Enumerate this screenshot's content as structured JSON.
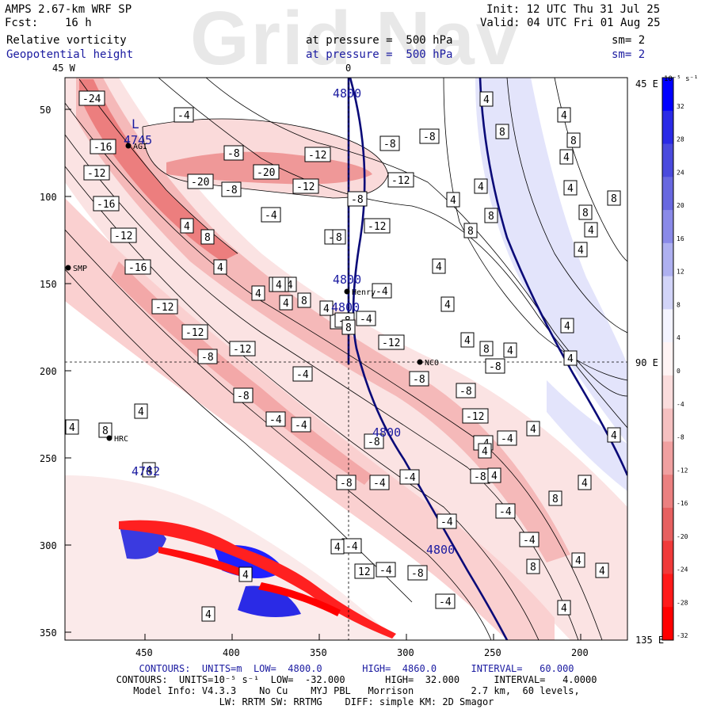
{
  "watermark": "Grid Nav",
  "header": {
    "model": "AMPS 2.67-km WRF SP",
    "fcst_label": "Fcst:",
    "fcst_value": "16 h",
    "init": "Init: 12 UTC Thu 31 Jul 25",
    "valid": "Valid: 04 UTC Fri 01 Aug 25",
    "field1": "Relative vorticity",
    "field2": "Geopotential height",
    "pressure1": "at pressure =  500 hPa",
    "pressure2": "at pressure =  500 hPa",
    "sm1": "sm= 2",
    "sm2": "sm= 2"
  },
  "map": {
    "lon_labels": {
      "top_left": "45 W",
      "top_center": "0",
      "right_top": "45 E",
      "right_mid": "90 E",
      "right_bottom": "135 E"
    },
    "y_ticks": [
      "50",
      "100",
      "150",
      "200",
      "250",
      "300",
      "350"
    ],
    "x_ticks": [
      "450",
      "400",
      "350",
      "300",
      "250",
      "200"
    ],
    "stations": [
      "AGI",
      "SMP",
      "Henry",
      "NCO",
      "HRC"
    ],
    "height_labels": [
      "4800",
      "4800",
      "4800",
      "4800",
      "4800",
      "4745",
      "4782"
    ],
    "low_marker": "L",
    "vort_labels_neg": [
      "-24",
      "-16",
      "-12",
      "-16",
      "-12",
      "-16",
      "-12",
      "-12",
      "-8",
      "-12",
      "-4",
      "-20",
      "-20",
      "-12",
      "-12",
      "-8",
      "-4",
      "-8",
      "-8",
      "-12",
      "-8",
      "-12",
      "-8",
      "-8",
      "-4",
      "-4",
      "-4",
      "-4",
      "-8",
      "-8",
      "-12",
      "-8",
      "-12",
      "-8",
      "-4",
      "-8",
      "-4",
      "-4",
      "-4",
      "-4",
      "-8",
      "-8",
      "-4",
      "-8",
      "-4",
      "-4",
      "-4",
      "-4",
      "-8",
      "-4",
      "-4",
      "-8",
      "-4"
    ],
    "vort_labels_pos": [
      "4",
      "4",
      "8",
      "4",
      "4",
      "8",
      "4",
      "4",
      "4",
      "4",
      "8",
      "4",
      "8",
      "8",
      "4",
      "4",
      "4",
      "8",
      "4",
      "4",
      "4",
      "8",
      "8",
      "4",
      "4",
      "8",
      "8",
      "4",
      "4",
      "4",
      "4",
      "4",
      "8",
      "4",
      "8",
      "4",
      "4",
      "8",
      "4",
      "4",
      "4",
      "4",
      "8",
      "4",
      "4",
      "4",
      "12",
      "4",
      "4"
    ]
  },
  "colorbar": {
    "unit": "10⁻⁵ s⁻¹",
    "labels": [
      "32",
      "28",
      "24",
      "20",
      "16",
      "12",
      "8",
      "4",
      "0",
      "-4",
      "-8",
      "-12",
      "-16",
      "-20",
      "-24",
      "-28",
      "-32"
    ],
    "colors": [
      "#0000ff",
      "#2a2ae6",
      "#4a4add",
      "#6868e0",
      "#8a8ae8",
      "#aeb0f0",
      "#d2d4f8",
      "#f4f4ff",
      "#fff4f4",
      "#fadcdc",
      "#f5c0c0",
      "#f0a0a0",
      "#eb8080",
      "#e66060",
      "#f03a3a",
      "#ff1a1a",
      "#ff0000"
    ]
  },
  "footer": {
    "line1_pre": "CONTOURS:  UNITS=m  LOW=  4800.0       HIGH=  4860.0      INTERVAL=   60.000",
    "line2": "CONTOURS:  UNITS=10⁻⁵ s⁻¹  LOW=  -32.000       HIGH=  32.000      INTERVAL=   4.0000",
    "line3": "Model Info: V4.3.3    No Cu    MYJ PBL   Morrison          2.7 km,  60 levels,",
    "line4": "LW: RRTM SW: RRTMG    DIFF: simple KM: 2D Smagor"
  }
}
